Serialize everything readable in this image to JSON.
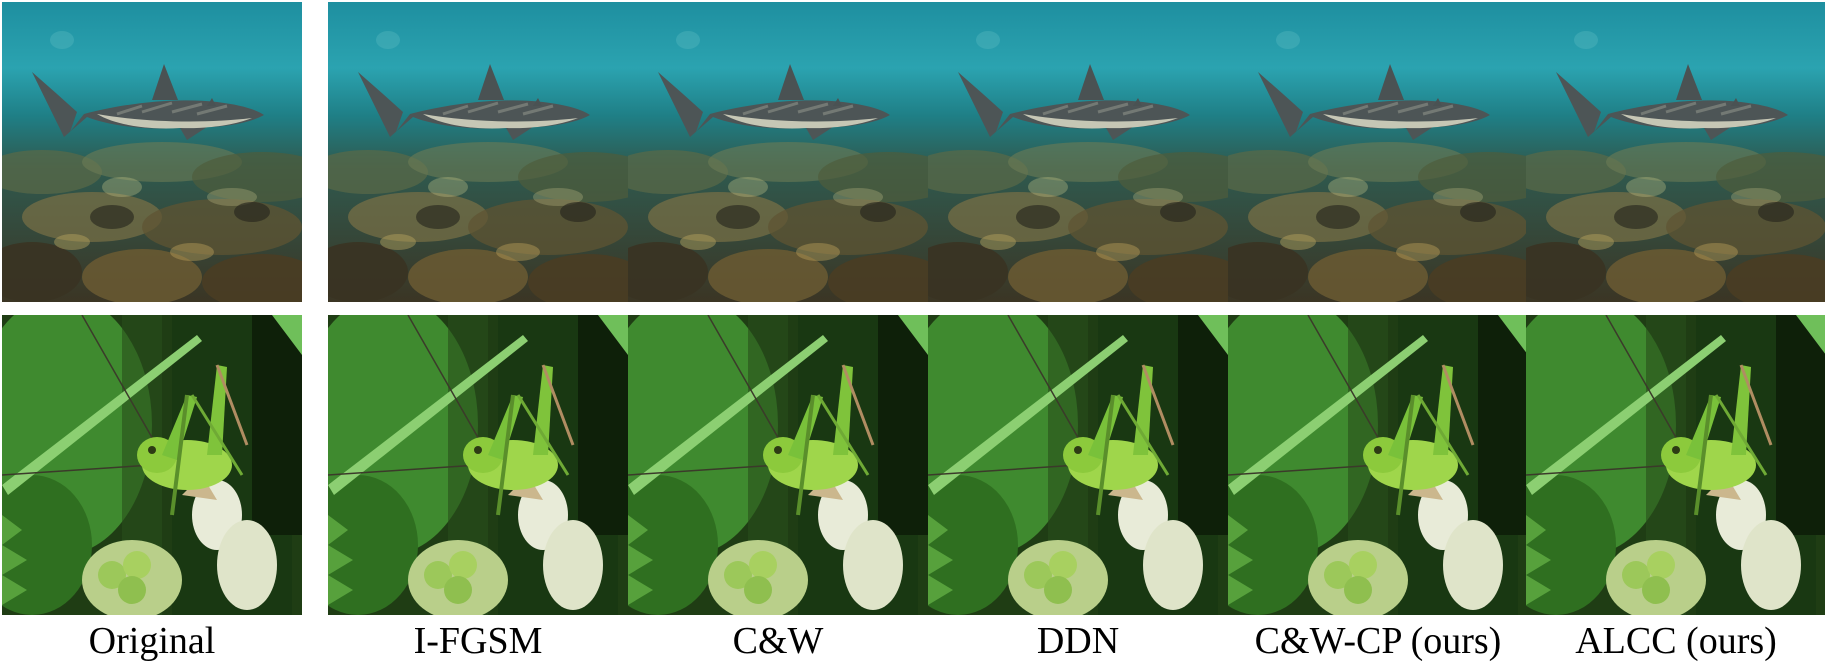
{
  "columns": [
    {
      "id": "original",
      "caption": "Original"
    },
    {
      "id": "ifgsm",
      "caption": "I-FGSM"
    },
    {
      "id": "cw",
      "caption": "C&W"
    },
    {
      "id": "ddn",
      "caption": "DDN"
    },
    {
      "id": "cwcp",
      "caption": "C&W-CP (ours)"
    },
    {
      "id": "alcc",
      "caption": "ALCC (ours)"
    }
  ],
  "rows": [
    {
      "id": "shark",
      "subject": "shark swimming over a rocky seabed"
    },
    {
      "id": "grasshopper",
      "subject": "green katydid on a bramble flower bud"
    }
  ]
}
